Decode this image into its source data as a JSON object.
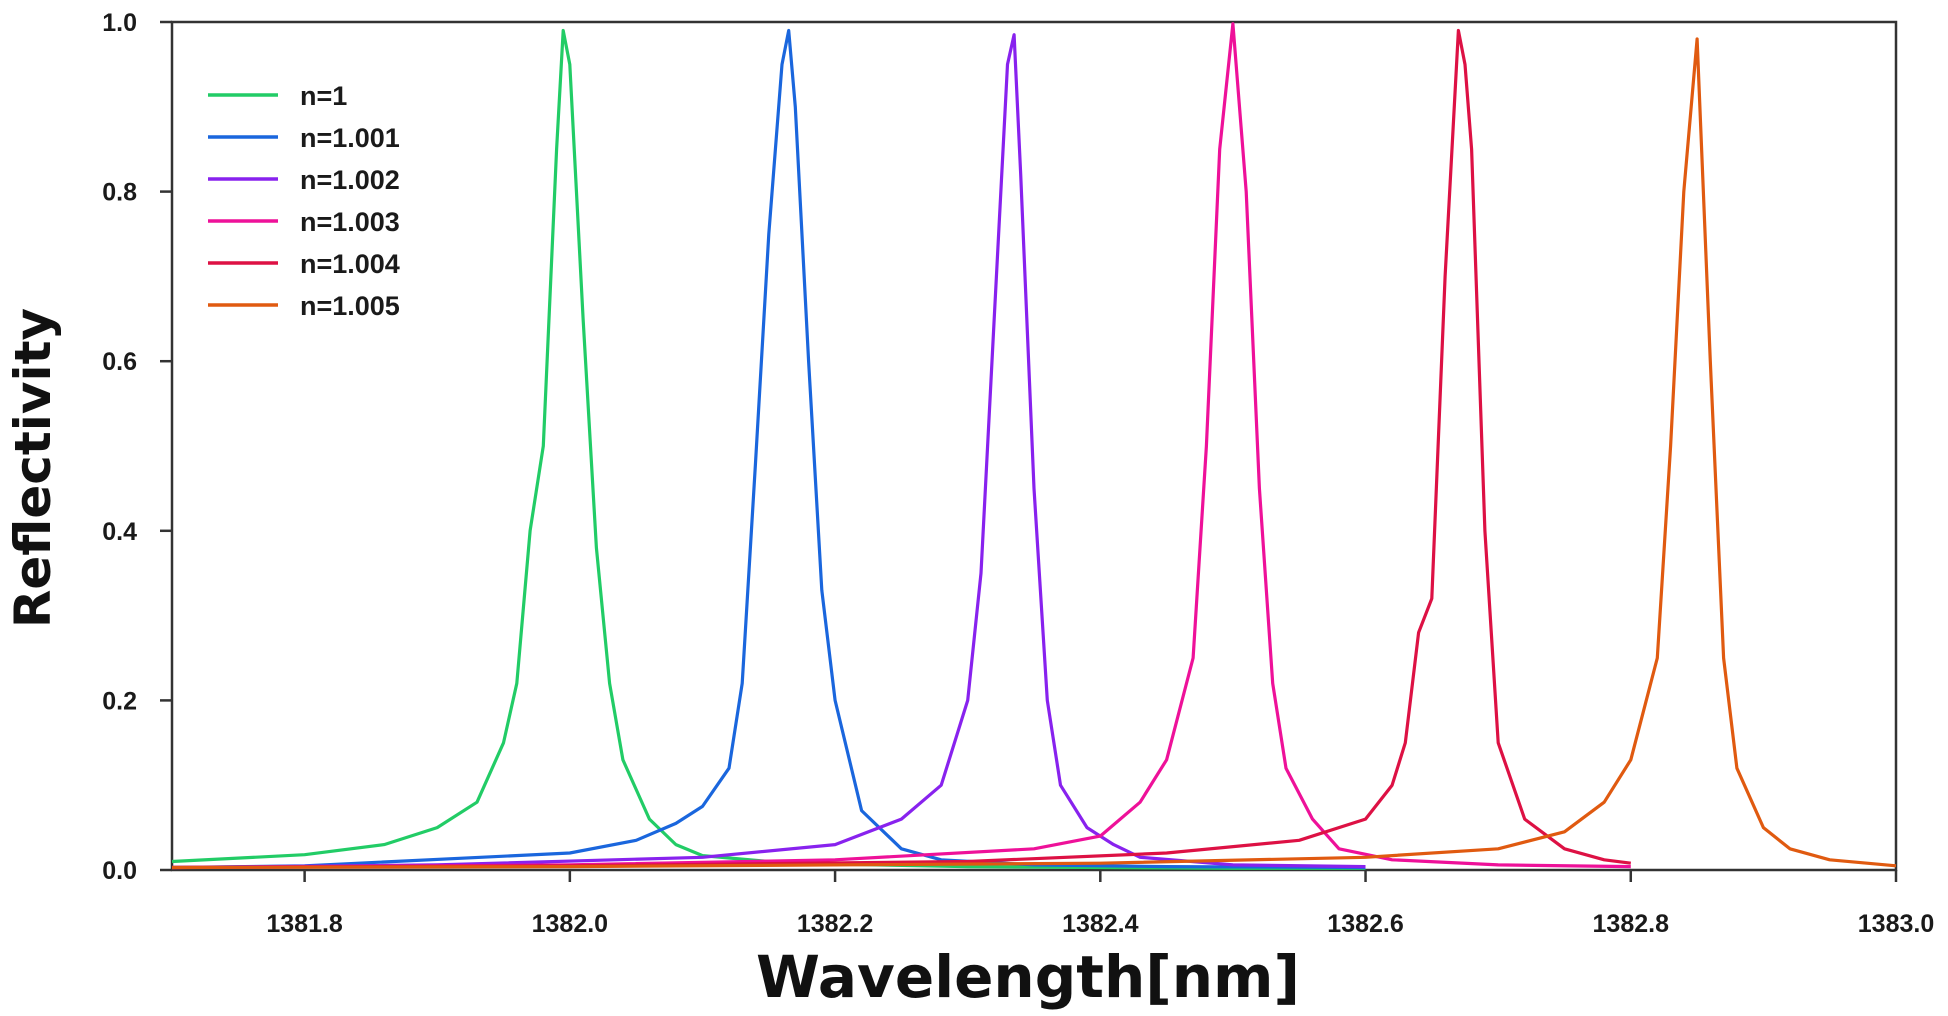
{
  "chart_data": {
    "type": "line",
    "title": "",
    "xlabel": "Wavelength[nm]",
    "ylabel": "Reflectivity",
    "xlim": [
      1381.7,
      1383.0
    ],
    "ylim": [
      0.0,
      1.0
    ],
    "grid": false,
    "legend_position": "top-left",
    "xticks": [
      {
        "value": 1381.8,
        "label": "1381.8"
      },
      {
        "value": 1382.0,
        "label": "1382.0"
      },
      {
        "value": 1382.2,
        "label": "1382.2"
      },
      {
        "value": 1382.4,
        "label": "1382.4"
      },
      {
        "value": 1382.6,
        "label": "1382.6"
      },
      {
        "value": 1382.8,
        "label": "1382.8"
      },
      {
        "value": 1383.0,
        "label": "1383.0"
      }
    ],
    "yticks": [
      {
        "value": 0.0,
        "label": "0.0"
      },
      {
        "value": 0.2,
        "label": "0.2"
      },
      {
        "value": 0.4,
        "label": "0.4"
      },
      {
        "value": 0.6,
        "label": "0.6"
      },
      {
        "value": 0.8,
        "label": "0.8"
      },
      {
        "value": 1.0,
        "label": "1.0"
      }
    ],
    "series": [
      {
        "name": "n=1",
        "color": "#22cc66",
        "x": [
          1381.7,
          1381.8,
          1381.86,
          1381.9,
          1381.93,
          1381.95,
          1381.96,
          1381.97,
          1381.98,
          1381.99,
          1381.995,
          1382.0,
          1382.01,
          1382.02,
          1382.03,
          1382.04,
          1382.06,
          1382.08,
          1382.1,
          1382.15,
          1382.2,
          1382.3,
          1382.4,
          1382.5,
          1382.6
        ],
        "y": [
          0.01,
          0.018,
          0.03,
          0.05,
          0.08,
          0.15,
          0.22,
          0.4,
          0.5,
          0.85,
          0.99,
          0.95,
          0.65,
          0.38,
          0.22,
          0.13,
          0.06,
          0.03,
          0.017,
          0.01,
          0.007,
          0.004,
          0.003,
          0.002,
          0.002
        ]
      },
      {
        "name": "n=1.001",
        "color": "#1a66dd",
        "x": [
          1381.7,
          1381.8,
          1382.0,
          1382.05,
          1382.08,
          1382.1,
          1382.12,
          1382.13,
          1382.14,
          1382.15,
          1382.16,
          1382.165,
          1382.17,
          1382.18,
          1382.19,
          1382.2,
          1382.22,
          1382.25,
          1382.28,
          1382.35,
          1382.45,
          1382.6
        ],
        "y": [
          0.003,
          0.005,
          0.02,
          0.035,
          0.055,
          0.075,
          0.12,
          0.22,
          0.48,
          0.75,
          0.95,
          0.99,
          0.9,
          0.6,
          0.33,
          0.2,
          0.07,
          0.025,
          0.012,
          0.006,
          0.004,
          0.003
        ]
      },
      {
        "name": "n=1.002",
        "color": "#8822ee",
        "x": [
          1381.7,
          1381.9,
          1382.1,
          1382.2,
          1382.25,
          1382.28,
          1382.3,
          1382.31,
          1382.32,
          1382.33,
          1382.335,
          1382.34,
          1382.35,
          1382.36,
          1382.37,
          1382.39,
          1382.41,
          1382.43,
          1382.5,
          1382.6
        ],
        "y": [
          0.003,
          0.006,
          0.015,
          0.03,
          0.06,
          0.1,
          0.2,
          0.35,
          0.65,
          0.95,
          0.985,
          0.82,
          0.45,
          0.2,
          0.1,
          0.05,
          0.03,
          0.015,
          0.006,
          0.004
        ]
      },
      {
        "name": "n=1.003",
        "color": "#ee1199",
        "x": [
          1381.7,
          1382.0,
          1382.2,
          1382.35,
          1382.4,
          1382.43,
          1382.45,
          1382.47,
          1382.48,
          1382.49,
          1382.5,
          1382.51,
          1382.52,
          1382.53,
          1382.54,
          1382.56,
          1382.58,
          1382.62,
          1382.7,
          1382.8
        ],
        "y": [
          0.003,
          0.006,
          0.012,
          0.025,
          0.04,
          0.08,
          0.13,
          0.25,
          0.5,
          0.85,
          0.998,
          0.8,
          0.45,
          0.22,
          0.12,
          0.06,
          0.025,
          0.012,
          0.006,
          0.004
        ]
      },
      {
        "name": "n=1.004",
        "color": "#dd1144",
        "x": [
          1381.7,
          1382.0,
          1382.3,
          1382.45,
          1382.55,
          1382.6,
          1382.62,
          1382.63,
          1382.64,
          1382.65,
          1382.66,
          1382.67,
          1382.675,
          1382.68,
          1382.69,
          1382.7,
          1382.72,
          1382.75,
          1382.78,
          1382.8
        ],
        "y": [
          0.003,
          0.005,
          0.01,
          0.02,
          0.035,
          0.06,
          0.1,
          0.15,
          0.28,
          0.32,
          0.7,
          0.99,
          0.95,
          0.85,
          0.4,
          0.15,
          0.06,
          0.025,
          0.012,
          0.008
        ]
      },
      {
        "name": "n=1.005",
        "color": "#e05a10",
        "x": [
          1381.7,
          1382.0,
          1382.4,
          1382.6,
          1382.7,
          1382.75,
          1382.78,
          1382.8,
          1382.82,
          1382.83,
          1382.84,
          1382.85,
          1382.86,
          1382.87,
          1382.88,
          1382.9,
          1382.92,
          1382.95,
          1383.0
        ],
        "y": [
          0.003,
          0.004,
          0.008,
          0.015,
          0.025,
          0.045,
          0.08,
          0.13,
          0.25,
          0.5,
          0.8,
          0.98,
          0.6,
          0.25,
          0.12,
          0.05,
          0.025,
          0.012,
          0.005
        ]
      }
    ]
  }
}
